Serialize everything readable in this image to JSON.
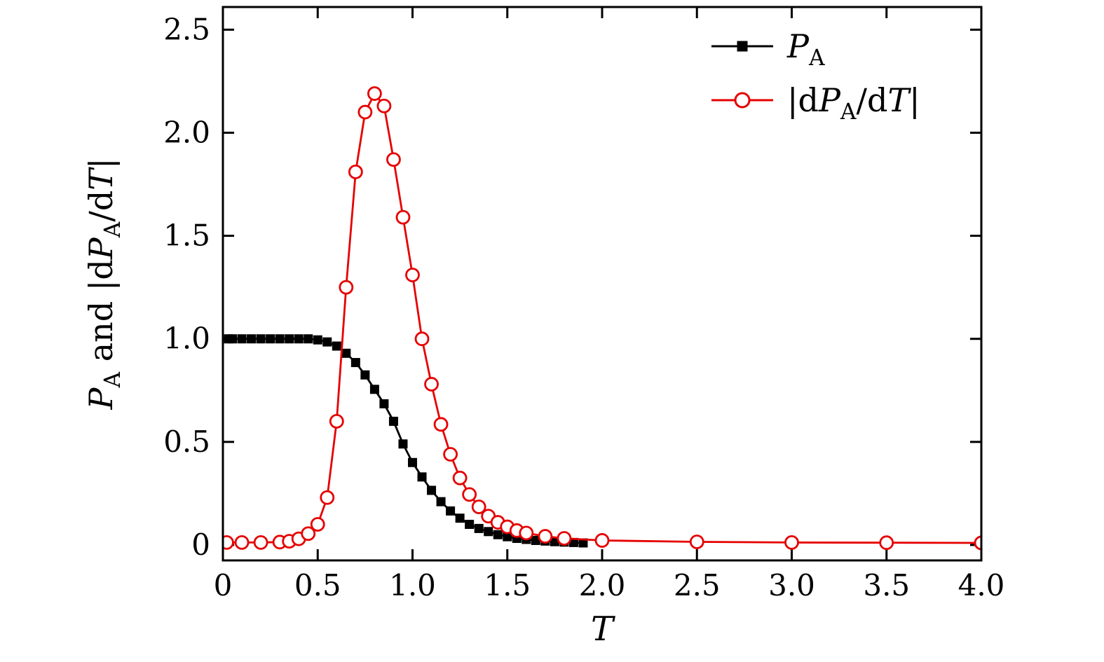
{
  "page": {
    "background": "#ffffff"
  },
  "chart_data": {
    "type": "line",
    "title": "",
    "xlabel": "T",
    "ylabel": "P_A and |dP_A/dT|",
    "xlabel_segments": [
      [
        "T",
        "i"
      ]
    ],
    "ylabel_segments": [
      [
        "P",
        "i"
      ],
      [
        "A",
        "s"
      ],
      [
        " and |d",
        ""
      ],
      [
        "P",
        "i"
      ],
      [
        "A",
        "s"
      ],
      [
        "/d",
        ""
      ],
      [
        "T",
        "i"
      ],
      [
        "|",
        ""
      ]
    ],
    "xlim": [
      0,
      4.0
    ],
    "ylim": [
      -0.075,
      2.61
    ],
    "xticks": [
      0,
      0.5,
      1.0,
      1.5,
      2.0,
      2.5,
      3.0,
      3.5,
      4.0
    ],
    "xtick_labels": [
      "0",
      "0.5",
      "1.0",
      "1.5",
      "2.0",
      "2.5",
      "3.0",
      "3.5",
      "4.0"
    ],
    "yticks": [
      0,
      0.5,
      1.0,
      1.5,
      2.0,
      2.5
    ],
    "ytick_labels": [
      "0",
      "0.5",
      "1.0",
      "1.5",
      "2.0",
      "2.5"
    ],
    "grid": false,
    "legend_position": "top-right",
    "frame_color": "#000000",
    "series": [
      {
        "name": "P_A",
        "label_segments": [
          [
            "P",
            "i"
          ],
          [
            "A",
            "s"
          ]
        ],
        "color": "#000000",
        "marker": "square",
        "x": [
          0.03,
          0.05,
          0.1,
          0.15,
          0.2,
          0.25,
          0.3,
          0.35,
          0.4,
          0.45,
          0.5,
          0.55,
          0.6,
          0.65,
          0.7,
          0.75,
          0.8,
          0.85,
          0.9,
          0.95,
          1.0,
          1.05,
          1.1,
          1.15,
          1.2,
          1.25,
          1.3,
          1.35,
          1.4,
          1.45,
          1.5,
          1.55,
          1.6,
          1.65,
          1.7,
          1.75,
          1.8,
          1.85,
          1.9
        ],
        "y": [
          1.0,
          1.0,
          1.0,
          1.0,
          1.0,
          1.0,
          1.0,
          1.0,
          1.0,
          1.0,
          0.995,
          0.985,
          0.965,
          0.93,
          0.885,
          0.825,
          0.755,
          0.685,
          0.6,
          0.49,
          0.4,
          0.33,
          0.265,
          0.21,
          0.165,
          0.13,
          0.1,
          0.08,
          0.065,
          0.05,
          0.04,
          0.032,
          0.027,
          0.022,
          0.019,
          0.016,
          0.014,
          0.012,
          0.01
        ]
      },
      {
        "name": "|dP_A/dT|",
        "label_segments": [
          [
            "|d",
            ""
          ],
          [
            "P",
            "i"
          ],
          [
            "A",
            "s"
          ],
          [
            "/d",
            ""
          ],
          [
            "T",
            "i"
          ],
          [
            "|",
            ""
          ]
        ],
        "color": "#e60000",
        "marker": "circle-open",
        "x": [
          0.02,
          0.1,
          0.2,
          0.3,
          0.35,
          0.4,
          0.45,
          0.5,
          0.55,
          0.6,
          0.65,
          0.7,
          0.75,
          0.8,
          0.85,
          0.9,
          0.95,
          1.0,
          1.05,
          1.1,
          1.15,
          1.2,
          1.25,
          1.3,
          1.35,
          1.4,
          1.45,
          1.5,
          1.55,
          1.6,
          1.7,
          1.8,
          2.0,
          2.5,
          3.0,
          3.5,
          4.0
        ],
        "y": [
          0.012,
          0.012,
          0.012,
          0.014,
          0.018,
          0.03,
          0.055,
          0.1,
          0.23,
          0.6,
          1.25,
          1.81,
          2.1,
          2.19,
          2.13,
          1.87,
          1.59,
          1.31,
          1.0,
          0.78,
          0.585,
          0.44,
          0.325,
          0.245,
          0.185,
          0.14,
          0.11,
          0.088,
          0.07,
          0.058,
          0.042,
          0.032,
          0.022,
          0.015,
          0.012,
          0.011,
          0.01
        ]
      }
    ]
  }
}
